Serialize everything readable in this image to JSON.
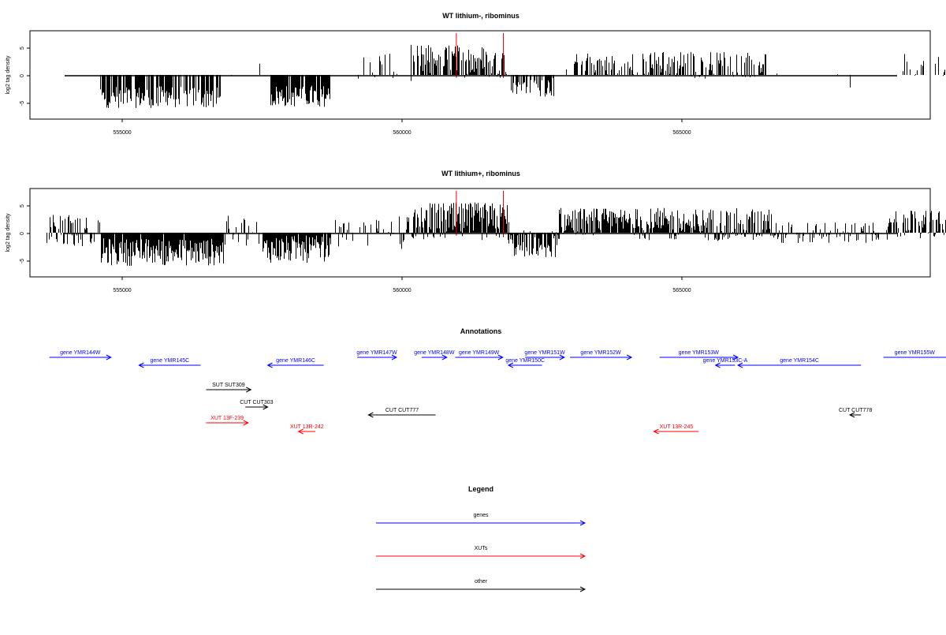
{
  "panels": [
    {
      "title": "WT lithium-, ribominus",
      "ylabel": "log2 tag density",
      "yticks": [
        "-5",
        "0",
        "5"
      ],
      "xticks": [
        "555000",
        "560000",
        "565000"
      ]
    },
    {
      "title": "WT lithium+, ribominus",
      "ylabel": "log2 tag density",
      "yticks": [
        "-5",
        "0",
        "5"
      ],
      "xticks": [
        "555000",
        "560000",
        "565000"
      ]
    }
  ],
  "annotations": {
    "title": "Annotations",
    "items": [
      {
        "label": "gene YMR144W",
        "x1": 553700,
        "x2": 554800,
        "dir": "right",
        "row": 0,
        "color": "#0000ff"
      },
      {
        "label": "gene YMR145C",
        "x1": 555300,
        "x2": 556400,
        "dir": "left",
        "row": 1,
        "color": "#0000ff"
      },
      {
        "label": "gene YMR146C",
        "x1": 557600,
        "x2": 558600,
        "dir": "left",
        "row": 1,
        "color": "#0000ff"
      },
      {
        "label": "gene YMR147W",
        "x1": 559200,
        "x2": 559900,
        "dir": "right",
        "row": 0,
        "color": "#0000ff"
      },
      {
        "label": "gene YMR148W",
        "x1": 560350,
        "x2": 560800,
        "dir": "right",
        "row": 0,
        "color": "#0000ff"
      },
      {
        "label": "gene YMR149W",
        "x1": 560950,
        "x2": 561800,
        "dir": "right",
        "row": 0,
        "color": "#0000ff"
      },
      {
        "label": "gene YMR150C",
        "x1": 561900,
        "x2": 562500,
        "dir": "left",
        "row": 1,
        "color": "#0000ff"
      },
      {
        "label": "gene YMR151W",
        "x1": 562200,
        "x2": 562900,
        "dir": "right",
        "row": 0,
        "color": "#0000ff"
      },
      {
        "label": "gene YMR152W",
        "x1": 563000,
        "x2": 564100,
        "dir": "right",
        "row": 0,
        "color": "#0000ff"
      },
      {
        "label": "gene YMR153W",
        "x1": 564600,
        "x2": 566000,
        "dir": "right",
        "row": 0,
        "color": "#0000ff"
      },
      {
        "label": "gene YMR153C-A",
        "x1": 565600,
        "x2": 565950,
        "dir": "left",
        "row": 1,
        "color": "#0000ff"
      },
      {
        "label": "gene YMR154C",
        "x1": 566000,
        "x2": 568200,
        "dir": "left",
        "row": 1,
        "color": "#0000ff"
      },
      {
        "label": "gene YMR155W",
        "x1": 568600,
        "x2": 570000,
        "dir": "right",
        "row": 0,
        "color": "#0000ff"
      },
      {
        "label": "SUT SUT309",
        "x1": 556500,
        "x2": 557300,
        "dir": "right",
        "row": 2,
        "color": "#000000"
      },
      {
        "label": "CUT CUT303",
        "x1": 557200,
        "x2": 557600,
        "dir": "right",
        "row": 3,
        "color": "#000000"
      },
      {
        "label": "CUT CUT777",
        "x1": 559400,
        "x2": 560600,
        "dir": "left",
        "row": 4,
        "color": "#000000"
      },
      {
        "label": "CUT CUT778",
        "x1": 568000,
        "x2": 568200,
        "dir": "left",
        "row": 4,
        "color": "#000000"
      },
      {
        "label": "XUT 13F-239",
        "x1": 556500,
        "x2": 557250,
        "dir": "right",
        "row": 5,
        "color": "#ff0000"
      },
      {
        "label": "XUT 13R-242",
        "x1": 558150,
        "x2": 558450,
        "dir": "left",
        "row": 6,
        "color": "#ff0000"
      },
      {
        "label": "XUT 13R-245",
        "x1": 564500,
        "x2": 565300,
        "dir": "left",
        "row": 6,
        "color": "#ff0000"
      }
    ]
  },
  "legend": {
    "title": "Legend",
    "items": [
      {
        "label": "genes",
        "color": "#0000ff"
      },
      {
        "label": "XUTs",
        "color": "#ff0000"
      },
      {
        "label": "other",
        "color": "#000000"
      }
    ]
  },
  "chart_data": {
    "type": "bar",
    "xlim": [
      553600,
      569800
    ],
    "ylim": [
      -8,
      8
    ],
    "highlight_lines_x": [
      560970,
      561810
    ],
    "highlight_color": "#ff0000",
    "bar_color": "#000000",
    "panels": [
      {
        "title": "WT lithium-, ribominus",
        "segments": [
          {
            "from": 553850,
            "to": 554450,
            "mean": 0.2,
            "amp": 0.6,
            "density": 0.02
          },
          {
            "from": 554600,
            "to": 556750,
            "mean": -4.0,
            "amp": 2.0,
            "density": 0.7
          },
          {
            "from": 556800,
            "to": 557500,
            "mean": 1.0,
            "amp": 1.5,
            "density": 0.03
          },
          {
            "from": 557650,
            "to": 558700,
            "mean": -3.8,
            "amp": 2.0,
            "density": 0.9
          },
          {
            "from": 559200,
            "to": 559900,
            "mean": 1.5,
            "amp": 3.0,
            "density": 0.25
          },
          {
            "from": 559950,
            "to": 560150,
            "mean": -0.5,
            "amp": 1.5,
            "density": 0.1
          },
          {
            "from": 560150,
            "to": 561900,
            "mean": 2.5,
            "amp": 3.0,
            "density": 0.75
          },
          {
            "from": 561950,
            "to": 562700,
            "mean": -2.0,
            "amp": 2.0,
            "density": 0.6
          },
          {
            "from": 562900,
            "to": 564200,
            "mean": 2.0,
            "amp": 2.0,
            "density": 0.55
          },
          {
            "from": 564300,
            "to": 565500,
            "mean": 1.8,
            "amp": 2.5,
            "density": 0.65
          },
          {
            "from": 565500,
            "to": 566500,
            "mean": 2.0,
            "amp": 2.5,
            "density": 0.5
          },
          {
            "from": 566600,
            "to": 568200,
            "mean": -0.8,
            "amp": 2.0,
            "density": 0.06
          },
          {
            "from": 568900,
            "to": 569700,
            "mean": 1.8,
            "amp": 2.0,
            "density": 0.35
          }
        ]
      },
      {
        "title": "WT lithium+, ribominus",
        "segments": [
          {
            "from": 553650,
            "to": 554600,
            "mean": 0.3,
            "amp": 3.0,
            "density": 0.6
          },
          {
            "from": 554600,
            "to": 556800,
            "mean": -3.5,
            "amp": 2.5,
            "density": 0.95
          },
          {
            "from": 556800,
            "to": 557500,
            "mean": 0.2,
            "amp": 3.0,
            "density": 0.3
          },
          {
            "from": 557500,
            "to": 558700,
            "mean": -3.0,
            "amp": 2.5,
            "density": 0.95
          },
          {
            "from": 558700,
            "to": 559900,
            "mean": 0.0,
            "amp": 2.5,
            "density": 0.3
          },
          {
            "from": 559900,
            "to": 560200,
            "mean": 0.0,
            "amp": 3.0,
            "density": 0.5
          },
          {
            "from": 560200,
            "to": 561900,
            "mean": 2.0,
            "amp": 3.5,
            "density": 0.95
          },
          {
            "from": 561900,
            "to": 562800,
            "mean": -2.0,
            "amp": 2.5,
            "density": 0.95
          },
          {
            "from": 562800,
            "to": 564200,
            "mean": 2.0,
            "amp": 2.5,
            "density": 0.95
          },
          {
            "from": 564200,
            "to": 566600,
            "mean": 1.5,
            "amp": 3.0,
            "density": 0.95
          },
          {
            "from": 566600,
            "to": 568700,
            "mean": 0.0,
            "amp": 2.0,
            "density": 0.5
          },
          {
            "from": 568700,
            "to": 569700,
            "mean": 1.5,
            "amp": 2.5,
            "density": 0.8
          }
        ]
      }
    ]
  }
}
